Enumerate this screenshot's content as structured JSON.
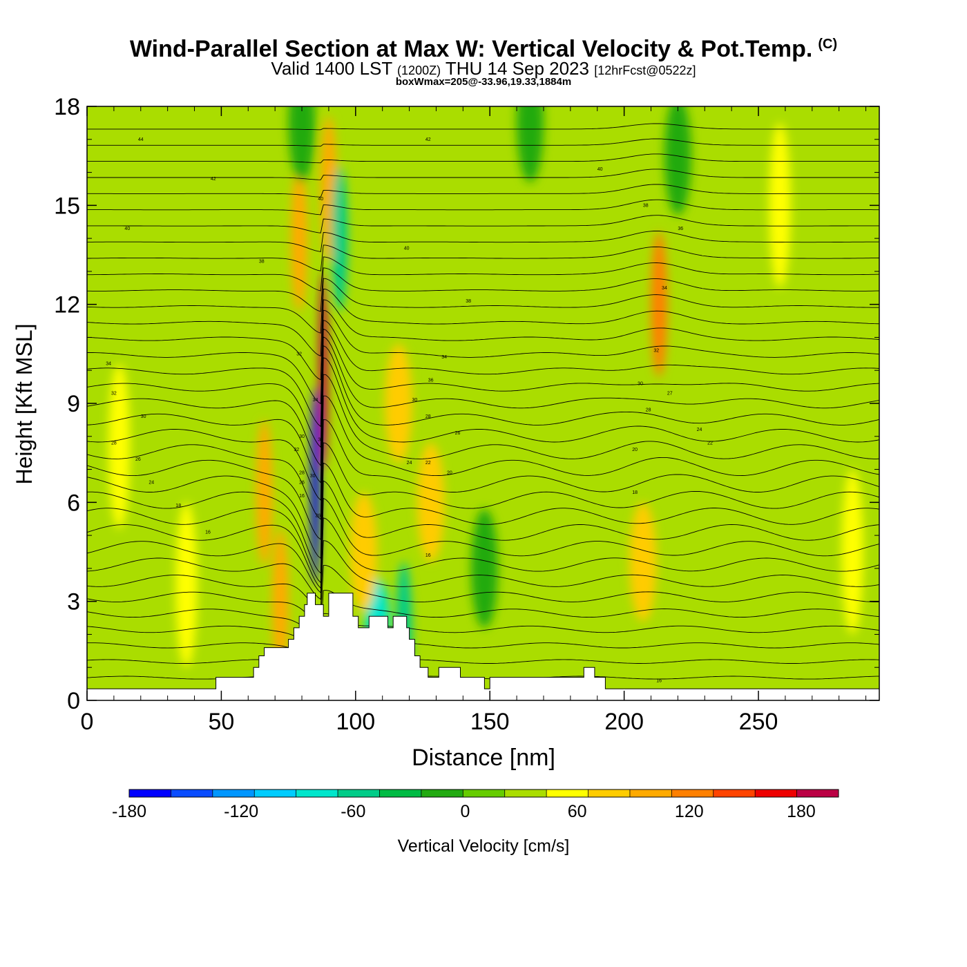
{
  "title": "Wind-Parallel Section at Max W: Vertical Velocity & Pot.Temp.",
  "copyright_mark": "(C)",
  "subtitle": {
    "valid": "Valid 1400 LST",
    "utc": "(1200Z)",
    "date": "THU 14 Sep 2023",
    "forecast": "[12hrFcst@0522z]"
  },
  "box_wmax": "boxWmax=205@-33.96,19.33,1884m",
  "chart_data": {
    "type": "heatmap",
    "xlabel": "Distance [nm]",
    "ylabel": "Height [Kft MSL]",
    "xlim": [
      0,
      295
    ],
    "ylim": [
      0,
      18
    ],
    "x_ticks": [
      0,
      50,
      100,
      150,
      200,
      250
    ],
    "y_ticks": [
      0,
      3,
      6,
      9,
      12,
      15,
      18
    ],
    "colorbar": {
      "label": "Vertical Velocity [cm/s]",
      "min": -180,
      "max": 200,
      "step": 20,
      "tick_values": [
        -180,
        -120,
        -60,
        0,
        60,
        120,
        180
      ],
      "colors": [
        "#0000ff",
        "#0a4cff",
        "#0096ff",
        "#00ccff",
        "#00e6cc",
        "#00cc88",
        "#00bb44",
        "#22aa11",
        "#66cc00",
        "#aadd00",
        "#ffff00",
        "#ffcc00",
        "#ffaa00",
        "#ff8000",
        "#ff4400",
        "#ee0000",
        "#bb0044"
      ]
    },
    "terrain_kft": [
      [
        0,
        0.35
      ],
      [
        48,
        0.35
      ],
      [
        48,
        0.7
      ],
      [
        62,
        0.7
      ],
      [
        62,
        1.0
      ],
      [
        64,
        1.0
      ],
      [
        64,
        1.35
      ],
      [
        66,
        1.35
      ],
      [
        66,
        1.6
      ],
      [
        75,
        1.6
      ],
      [
        75,
        1.85
      ],
      [
        77,
        1.85
      ],
      [
        77,
        2.2
      ],
      [
        79,
        2.2
      ],
      [
        79,
        2.55
      ],
      [
        81,
        2.55
      ],
      [
        81,
        2.9
      ],
      [
        82,
        2.9
      ],
      [
        82,
        3.25
      ],
      [
        85,
        3.25
      ],
      [
        85,
        2.9
      ],
      [
        88,
        2.9
      ],
      [
        88,
        2.55
      ],
      [
        90,
        2.55
      ],
      [
        90,
        3.25
      ],
      [
        99,
        3.25
      ],
      [
        99,
        2.55
      ],
      [
        101,
        2.55
      ],
      [
        101,
        2.2
      ],
      [
        105,
        2.2
      ],
      [
        105,
        2.55
      ],
      [
        112,
        2.55
      ],
      [
        112,
        2.2
      ],
      [
        114,
        2.2
      ],
      [
        114,
        2.55
      ],
      [
        119,
        2.55
      ],
      [
        119,
        2.2
      ],
      [
        120,
        2.2
      ],
      [
        120,
        1.85
      ],
      [
        122,
        1.85
      ],
      [
        122,
        1.35
      ],
      [
        124,
        1.35
      ],
      [
        124,
        1.0
      ],
      [
        127,
        1.0
      ],
      [
        127,
        0.7
      ],
      [
        131,
        0.7
      ],
      [
        131,
        1.0
      ],
      [
        139,
        1.0
      ],
      [
        139,
        0.7
      ],
      [
        148,
        0.7
      ],
      [
        148,
        0.35
      ],
      [
        150,
        0.35
      ],
      [
        150,
        0.7
      ],
      [
        185,
        0.7
      ],
      [
        185,
        1.0
      ],
      [
        189,
        1.0
      ],
      [
        189,
        0.7
      ],
      [
        193,
        0.7
      ],
      [
        193,
        0.35
      ],
      [
        295,
        0.35
      ]
    ],
    "w_features": [
      {
        "x": 85,
        "y": 6.5,
        "value": -180
      },
      {
        "x": 88,
        "y": 10,
        "value": 180
      },
      {
        "x": 90,
        "y": 15.5,
        "value": 60
      },
      {
        "x": 108,
        "y": 2.5,
        "value": -100
      },
      {
        "x": 118,
        "y": 2.0,
        "value": -80
      },
      {
        "x": 66,
        "y": 6.3,
        "value": 60
      },
      {
        "x": 72,
        "y": 3.0,
        "value": 60
      },
      {
        "x": 79,
        "y": 14,
        "value": 60
      },
      {
        "x": 94,
        "y": 14,
        "value": -80
      },
      {
        "x": 103,
        "y": 4.5,
        "value": 40
      },
      {
        "x": 116,
        "y": 9,
        "value": 40
      },
      {
        "x": 128,
        "y": 6.0,
        "value": 40
      },
      {
        "x": 213,
        "y": 12.0,
        "value": 80
      },
      {
        "x": 207,
        "y": 4.2,
        "value": 40
      },
      {
        "x": 220,
        "y": 16.5,
        "value": -40
      },
      {
        "x": 12,
        "y": 7.7,
        "value": 20
      },
      {
        "x": 37,
        "y": 3.5,
        "value": 20
      },
      {
        "x": 80,
        "y": 17.5,
        "value": -40
      },
      {
        "x": 165,
        "y": 17.5,
        "value": -40
      },
      {
        "x": 148,
        "y": 4.0,
        "value": -40
      },
      {
        "x": 285,
        "y": 4.5,
        "value": 20
      },
      {
        "x": 258,
        "y": 15,
        "value": 20
      }
    ],
    "theta_contour_levels": {
      "start": 12,
      "end": 46,
      "step": 1
    },
    "theta_labels": [
      {
        "x": 20,
        "y": 17.0,
        "text": "44"
      },
      {
        "x": 47,
        "y": 15.8,
        "text": "42"
      },
      {
        "x": 15,
        "y": 14.3,
        "text": "40"
      },
      {
        "x": 65,
        "y": 13.3,
        "text": "38"
      },
      {
        "x": 87,
        "y": 15.2,
        "text": "40"
      },
      {
        "x": 127,
        "y": 17.0,
        "text": "42"
      },
      {
        "x": 119,
        "y": 13.7,
        "text": "40"
      },
      {
        "x": 142,
        "y": 12.1,
        "text": "38"
      },
      {
        "x": 191,
        "y": 16.1,
        "text": "40"
      },
      {
        "x": 208,
        "y": 15.0,
        "text": "38"
      },
      {
        "x": 221,
        "y": 14.3,
        "text": "36"
      },
      {
        "x": 215,
        "y": 12.5,
        "text": "34"
      },
      {
        "x": 8,
        "y": 10.2,
        "text": "34"
      },
      {
        "x": 79,
        "y": 10.5,
        "text": "32"
      },
      {
        "x": 133,
        "y": 10.4,
        "text": "34"
      },
      {
        "x": 10,
        "y": 9.3,
        "text": "32"
      },
      {
        "x": 21,
        "y": 8.6,
        "text": "30"
      },
      {
        "x": 10,
        "y": 7.8,
        "text": "28"
      },
      {
        "x": 19,
        "y": 7.3,
        "text": "26"
      },
      {
        "x": 24,
        "y": 6.6,
        "text": "24"
      },
      {
        "x": 34,
        "y": 5.9,
        "text": "18"
      },
      {
        "x": 45,
        "y": 5.1,
        "text": "16"
      },
      {
        "x": 128,
        "y": 9.7,
        "text": "36"
      },
      {
        "x": 122,
        "y": 9.1,
        "text": "30"
      },
      {
        "x": 127,
        "y": 8.6,
        "text": "28"
      },
      {
        "x": 138,
        "y": 8.1,
        "text": "26"
      },
      {
        "x": 120,
        "y": 7.2,
        "text": "24"
      },
      {
        "x": 127,
        "y": 7.2,
        "text": "22"
      },
      {
        "x": 135,
        "y": 6.9,
        "text": "20"
      },
      {
        "x": 212,
        "y": 10.6,
        "text": "32"
      },
      {
        "x": 206,
        "y": 9.6,
        "text": "30"
      },
      {
        "x": 217,
        "y": 9.3,
        "text": "27"
      },
      {
        "x": 209,
        "y": 8.8,
        "text": "28"
      },
      {
        "x": 228,
        "y": 8.2,
        "text": "24"
      },
      {
        "x": 232,
        "y": 7.8,
        "text": "22"
      },
      {
        "x": 204,
        "y": 7.6,
        "text": "20"
      },
      {
        "x": 204,
        "y": 6.3,
        "text": "18"
      },
      {
        "x": 85,
        "y": 9.1,
        "text": "34"
      },
      {
        "x": 80,
        "y": 8.0,
        "text": "30"
      },
      {
        "x": 78,
        "y": 7.6,
        "text": "32"
      },
      {
        "x": 80,
        "y": 6.9,
        "text": "28"
      },
      {
        "x": 80,
        "y": 6.6,
        "text": "26"
      },
      {
        "x": 84,
        "y": 6.8,
        "text": "30"
      },
      {
        "x": 80,
        "y": 6.2,
        "text": "16"
      },
      {
        "x": 87,
        "y": 7.9,
        "text": "32"
      },
      {
        "x": 86,
        "y": 5.6,
        "text": "26"
      },
      {
        "x": 127,
        "y": 4.4,
        "text": "16"
      },
      {
        "x": 213,
        "y": 0.6,
        "text": "16"
      }
    ]
  }
}
